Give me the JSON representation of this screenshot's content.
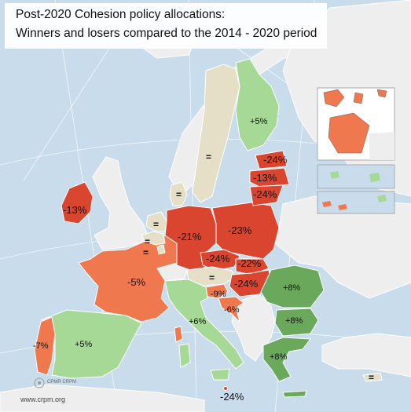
{
  "title": {
    "line1": "Post-2020 Cohesion policy allocations:",
    "line2": "Winners and losers compared to the 2014 - 2020 period"
  },
  "colors": {
    "sea": "#c8dcec",
    "non_eu_land": "#eeeeee",
    "border": "#ffffff",
    "strong_loss": "#d9452f",
    "moderate_loss": "#f0784e",
    "unchanged": "#e6dfc7",
    "moderate_gain": "#a6d896",
    "strong_gain": "#6aa85c"
  },
  "countries": [
    {
      "key": "ireland",
      "label": "-13%",
      "category": "strong_loss"
    },
    {
      "key": "portugal",
      "label": "-7%",
      "category": "moderate_loss"
    },
    {
      "key": "spain",
      "label": "+5%",
      "category": "moderate_gain"
    },
    {
      "key": "france",
      "label": "-5%",
      "category": "moderate_loss"
    },
    {
      "key": "germany",
      "label": "-21%",
      "category": "strong_loss"
    },
    {
      "key": "poland",
      "label": "-23%",
      "category": "strong_loss"
    },
    {
      "key": "czechia",
      "label": "-24%",
      "category": "strong_loss"
    },
    {
      "key": "slovakia",
      "label": "-22%",
      "category": "strong_loss"
    },
    {
      "key": "hungary",
      "label": "-24%",
      "category": "strong_loss"
    },
    {
      "key": "austria",
      "label": "=",
      "category": "unchanged"
    },
    {
      "key": "slovenia",
      "label": "-9%",
      "category": "moderate_loss"
    },
    {
      "key": "croatia",
      "label": "-6%",
      "category": "moderate_loss"
    },
    {
      "key": "italy",
      "label": "+6%",
      "category": "moderate_gain"
    },
    {
      "key": "malta",
      "label": "-24%",
      "category": "strong_loss"
    },
    {
      "key": "romania",
      "label": "+8%",
      "category": "strong_gain"
    },
    {
      "key": "bulgaria",
      "label": "+8%",
      "category": "strong_gain"
    },
    {
      "key": "greece",
      "label": "+8%",
      "category": "strong_gain"
    },
    {
      "key": "cyprus",
      "label": "=",
      "category": "unchanged"
    },
    {
      "key": "sweden",
      "label": "=",
      "category": "unchanged"
    },
    {
      "key": "finland",
      "label": "+5%",
      "category": "moderate_gain"
    },
    {
      "key": "estonia",
      "label": "-24%",
      "category": "strong_loss"
    },
    {
      "key": "latvia",
      "label": "-13%",
      "category": "strong_loss"
    },
    {
      "key": "lithuania",
      "label": "-24%",
      "category": "strong_loss"
    },
    {
      "key": "denmark",
      "label": "=",
      "category": "unchanged"
    },
    {
      "key": "netherlands",
      "label": "=",
      "category": "unchanged"
    },
    {
      "key": "belgium",
      "label": "=",
      "category": "unchanged"
    },
    {
      "key": "luxembourg",
      "label": "=",
      "category": "unchanged"
    }
  ],
  "credit": "www.crpm.org",
  "logo": "CPMR CRPM"
}
